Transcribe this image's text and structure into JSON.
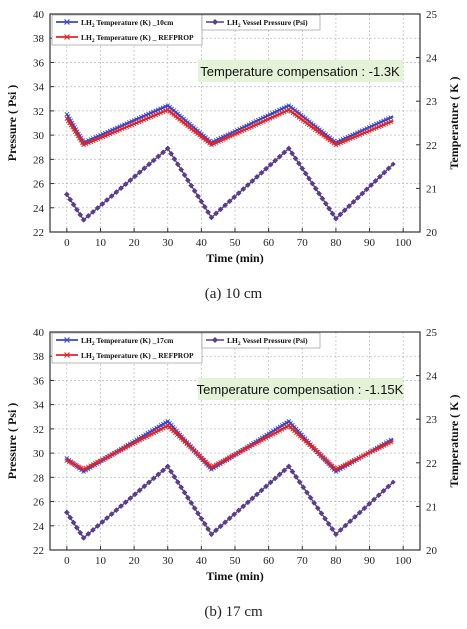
{
  "chart_data": [
    {
      "type": "line",
      "xlabel": "Time (min)",
      "ylabel": "Pressure ( Psi )",
      "y2label": "Temperature ( K )",
      "xlim": [
        -5,
        105
      ],
      "ylim": [
        22,
        40
      ],
      "y2lim": [
        20,
        25
      ],
      "xticks": [
        "0",
        "10",
        "20",
        "30",
        "40",
        "50",
        "60",
        "70",
        "80",
        "90",
        "100"
      ],
      "yticks": [
        "22",
        "24",
        "26",
        "28",
        "30",
        "32",
        "34",
        "36",
        "38",
        "40"
      ],
      "y2ticks": [
        "20",
        "21",
        "22",
        "23",
        "24",
        "25"
      ],
      "grid": true,
      "annotation": "Temperature compensation : -1.3K",
      "caption": "(a)  10  cm",
      "legend": {
        "lh2_temp": "LH",
        "lh2_temp_tail": " Temperature (K) _10cm",
        "lh2_ref": "LH",
        "lh2_ref_tail": " Temperature (K) _ REFPROP",
        "lh2_press": "LH",
        "lh2_press_tail": " Vessel Pressure (Psi)",
        "sub": "2"
      },
      "series": [
        {
          "key": "temp_probe",
          "axis": "y2",
          "color": "#3b45c8",
          "marker": "x",
          "x": [
            0,
            5,
            30,
            43,
            66,
            80,
            97
          ],
          "values": [
            22.7,
            22.05,
            22.9,
            22.05,
            22.9,
            22.05,
            22.65
          ]
        },
        {
          "key": "temp_ref",
          "axis": "y2",
          "color": "#e0242a",
          "marker": "x",
          "x": [
            0,
            5,
            30,
            43,
            66,
            80,
            97
          ],
          "values": [
            22.6,
            22.0,
            22.8,
            22.0,
            22.8,
            22.0,
            22.55
          ]
        },
        {
          "key": "pressure",
          "axis": "y",
          "color": "#5a3d8c",
          "marker": "diamond",
          "x": [
            0,
            5,
            30,
            43,
            66,
            80,
            97
          ],
          "values": [
            25.1,
            23.0,
            28.9,
            23.2,
            28.9,
            23.1,
            27.6
          ]
        }
      ]
    },
    {
      "type": "line",
      "xlabel": "Time (min)",
      "ylabel": "Pressure ( Psi )",
      "y2label": "Temperature ( K )",
      "xlim": [
        -5,
        105
      ],
      "ylim": [
        22,
        40
      ],
      "y2lim": [
        20,
        25
      ],
      "xticks": [
        "0",
        "10",
        "20",
        "30",
        "40",
        "50",
        "60",
        "70",
        "80",
        "90",
        "100"
      ],
      "yticks": [
        "22",
        "24",
        "26",
        "28",
        "30",
        "32",
        "34",
        "36",
        "38",
        "40"
      ],
      "y2ticks": [
        "20",
        "21",
        "22",
        "23",
        "24",
        "25"
      ],
      "grid": true,
      "annotation": "Temperature compensation : -1.15K",
      "caption": "(b)  17  cm",
      "legend": {
        "lh2_temp": "LH",
        "lh2_temp_tail": " Temperature (K) _17cm",
        "lh2_ref": "LH",
        "lh2_ref_tail": " Temperature (K) _ REFPROP",
        "lh2_press": "LH",
        "lh2_press_tail": " Vessel Pressure (Psi)",
        "sub": "2"
      },
      "series": [
        {
          "key": "temp_probe",
          "axis": "y2",
          "color": "#3b45c8",
          "marker": "x",
          "x": [
            0,
            5,
            30,
            43,
            66,
            80,
            97
          ],
          "values": [
            22.1,
            21.8,
            22.95,
            21.85,
            22.95,
            21.8,
            22.55
          ]
        },
        {
          "key": "temp_ref",
          "axis": "y2",
          "color": "#e0242a",
          "marker": "x",
          "x": [
            0,
            5,
            30,
            43,
            66,
            80,
            97
          ],
          "values": [
            22.05,
            21.85,
            22.85,
            21.9,
            22.85,
            21.85,
            22.5
          ]
        },
        {
          "key": "pressure",
          "axis": "y",
          "color": "#5a3d8c",
          "marker": "diamond",
          "x": [
            0,
            5,
            30,
            43,
            66,
            80,
            97
          ],
          "values": [
            25.1,
            23.0,
            28.9,
            23.3,
            28.9,
            23.3,
            27.6
          ]
        }
      ]
    }
  ]
}
